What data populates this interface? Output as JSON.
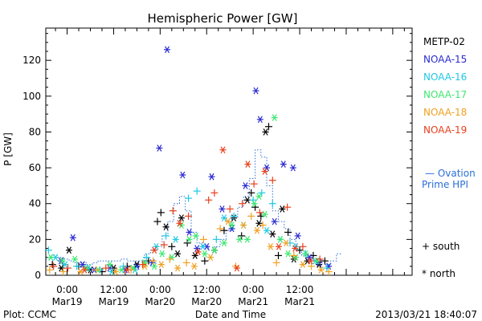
{
  "footer": {
    "plot_credit": "Plot: CCMC",
    "timestamp": "2013/03/21 18:40:07"
  },
  "legend": {
    "ovation_line1": "— Ovation",
    "ovation_line2": "Prime HPI",
    "south_label": "+ south",
    "north_label": "* north"
  },
  "chart_data": {
    "type": "scatter",
    "title": "Hemispheric Power [GW]",
    "xlabel": "Date and Time",
    "ylabel": "P [GW]",
    "x_unit": "hours since 2013-03-18 00:00 UT",
    "xlim": [
      18.5,
      113
    ],
    "ylim": [
      0,
      138
    ],
    "yticks": [
      0,
      20,
      40,
      60,
      80,
      100,
      120
    ],
    "xticks": [
      {
        "x": 24,
        "time": "0:00",
        "date": "Mar19"
      },
      {
        "x": 36,
        "time": "12:00",
        "date": "Mar19"
      },
      {
        "x": 48,
        "time": "0:00",
        "date": "Mar20"
      },
      {
        "x": 60,
        "time": "12:00",
        "date": "Mar20"
      },
      {
        "x": 72,
        "time": "0:00",
        "date": "Mar21"
      },
      {
        "x": 84,
        "time": "12:00",
        "date": "Mar21"
      }
    ],
    "grid": false,
    "legend_position": "right",
    "series": [
      {
        "name": "METP-02",
        "color": "#000000",
        "points": [
          [
            20.2,
            6,
            "+"
          ],
          [
            22.5,
            4,
            "*"
          ],
          [
            24.5,
            14,
            "*"
          ],
          [
            27,
            5,
            "+"
          ],
          [
            30,
            3,
            "*"
          ],
          [
            33,
            2,
            "+"
          ],
          [
            36,
            4,
            "*"
          ],
          [
            39.5,
            5,
            "+"
          ],
          [
            42,
            6,
            "*"
          ],
          [
            45,
            8,
            "+"
          ],
          [
            47.3,
            30,
            "+"
          ],
          [
            48.2,
            35,
            "+"
          ],
          [
            49.5,
            27,
            "*"
          ],
          [
            51,
            16,
            "+"
          ],
          [
            52.5,
            12,
            "*"
          ],
          [
            53.5,
            32,
            "*"
          ],
          [
            55,
            18,
            "+"
          ],
          [
            57,
            11,
            "*"
          ],
          [
            59.5,
            8,
            "+"
          ],
          [
            62,
            14,
            "*"
          ],
          [
            64.5,
            25,
            "+"
          ],
          [
            67,
            32,
            "*"
          ],
          [
            69,
            22,
            "+"
          ],
          [
            70.5,
            42,
            "*"
          ],
          [
            71.5,
            46,
            "+"
          ],
          [
            72.5,
            38,
            "+"
          ],
          [
            73.5,
            29,
            "*"
          ],
          [
            74,
            33,
            "+"
          ],
          [
            75.2,
            80,
            "*"
          ],
          [
            76,
            83,
            "+"
          ],
          [
            77,
            23,
            "*"
          ],
          [
            78.5,
            11,
            "+"
          ],
          [
            79.5,
            37,
            "*"
          ],
          [
            81,
            24,
            "+"
          ],
          [
            82.5,
            9,
            "*"
          ],
          [
            84,
            14,
            "+"
          ],
          [
            86,
            8,
            "*"
          ],
          [
            87.5,
            11,
            "+"
          ],
          [
            89,
            6,
            "*"
          ],
          [
            90.5,
            8,
            "+"
          ]
        ]
      },
      {
        "name": "NOAA-15",
        "color": "#2a2ad2",
        "points": [
          [
            22.4,
            8,
            "*"
          ],
          [
            25.5,
            21,
            "*"
          ],
          [
            28,
            6,
            "*"
          ],
          [
            31,
            3,
            "*"
          ],
          [
            35,
            4,
            "*"
          ],
          [
            39,
            3,
            "*"
          ],
          [
            42,
            5,
            "*"
          ],
          [
            46,
            7,
            "*"
          ],
          [
            47.8,
            71,
            "*"
          ],
          [
            49.8,
            126,
            "*"
          ],
          [
            53.8,
            56,
            "*"
          ],
          [
            55.5,
            24,
            "*"
          ],
          [
            57.5,
            15,
            "*"
          ],
          [
            60,
            16,
            "*"
          ],
          [
            61.3,
            55,
            "*"
          ],
          [
            64,
            37,
            "*"
          ],
          [
            66.5,
            26,
            "*"
          ],
          [
            70,
            50,
            "*"
          ],
          [
            72.7,
            103,
            "*"
          ],
          [
            73.8,
            87,
            "*"
          ],
          [
            75.5,
            60,
            "*"
          ],
          [
            77.5,
            30,
            "*"
          ],
          [
            79.8,
            62,
            "*"
          ],
          [
            82.3,
            60,
            "*"
          ],
          [
            83.5,
            22,
            "*"
          ],
          [
            86.5,
            10,
            "*"
          ],
          [
            89,
            7,
            "*"
          ],
          [
            91.5,
            5,
            "*"
          ]
        ]
      },
      {
        "name": "NOAA-16",
        "color": "#1fc8e6",
        "points": [
          [
            19.2,
            14,
            "+"
          ],
          [
            21,
            10,
            "*"
          ],
          [
            23.5,
            6,
            "*"
          ],
          [
            26.5,
            5,
            "+"
          ],
          [
            29.5,
            4,
            "*"
          ],
          [
            32.5,
            3,
            "+"
          ],
          [
            35.5,
            2,
            "*"
          ],
          [
            38.5,
            5,
            "+"
          ],
          [
            41.5,
            3,
            "*"
          ],
          [
            44.5,
            10,
            "+"
          ],
          [
            47,
            16,
            "*"
          ],
          [
            49.5,
            22,
            "+"
          ],
          [
            52,
            20,
            "*"
          ],
          [
            55.3,
            43,
            "+"
          ],
          [
            57.5,
            47,
            "+"
          ],
          [
            59,
            16,
            "*"
          ],
          [
            62.5,
            20,
            "+"
          ],
          [
            64.5,
            32,
            "*"
          ],
          [
            67,
            33,
            "+"
          ],
          [
            69.5,
            28,
            "*"
          ],
          [
            72,
            42,
            "+"
          ],
          [
            74.2,
            46,
            "+"
          ],
          [
            75.5,
            25,
            "*"
          ],
          [
            77,
            40,
            "+"
          ],
          [
            79,
            20,
            "*"
          ],
          [
            81.5,
            18,
            "+"
          ],
          [
            83,
            16,
            "*"
          ],
          [
            85.5,
            12,
            "+"
          ],
          [
            88,
            8,
            "*"
          ],
          [
            91,
            4,
            "+"
          ]
        ]
      },
      {
        "name": "NOAA-17",
        "color": "#3de870",
        "points": [
          [
            19.8,
            10,
            "*"
          ],
          [
            22.8,
            8,
            "*"
          ],
          [
            26,
            9,
            "*"
          ],
          [
            29,
            4,
            "*"
          ],
          [
            32,
            3,
            "*"
          ],
          [
            35,
            6,
            "*"
          ],
          [
            38,
            3,
            "*"
          ],
          [
            41,
            4,
            "*"
          ],
          [
            44,
            7,
            "*"
          ],
          [
            46.5,
            5,
            "*"
          ],
          [
            48.5,
            12,
            "*"
          ],
          [
            51,
            10,
            "*"
          ],
          [
            53.5,
            28,
            "*"
          ],
          [
            55.5,
            20,
            "*"
          ],
          [
            57.2,
            22,
            "*"
          ],
          [
            59.5,
            12,
            "*"
          ],
          [
            62,
            14,
            "*"
          ],
          [
            64.5,
            18,
            "*"
          ],
          [
            66.5,
            28,
            "*"
          ],
          [
            68.5,
            20,
            "*"
          ],
          [
            70.5,
            20,
            "*"
          ],
          [
            72.3,
            40,
            "*"
          ],
          [
            73.5,
            44,
            "*"
          ],
          [
            75,
            34,
            "*"
          ],
          [
            77.5,
            88,
            "*"
          ],
          [
            79,
            20,
            "*"
          ],
          [
            81,
            12,
            "*"
          ],
          [
            83,
            10,
            "*"
          ],
          [
            85.5,
            12,
            "*"
          ],
          [
            88.5,
            8,
            "*"
          ]
        ]
      },
      {
        "name": "NOAA-18",
        "color": "#f0a020",
        "points": [
          [
            19.5,
            3,
            "+"
          ],
          [
            23,
            2,
            "+"
          ],
          [
            27.5,
            2,
            "*"
          ],
          [
            31.5,
            3,
            "+"
          ],
          [
            36.5,
            2,
            "*"
          ],
          [
            40.5,
            3,
            "+"
          ],
          [
            44,
            5,
            "*"
          ],
          [
            46.2,
            8,
            "+"
          ],
          [
            48.3,
            6,
            "*"
          ],
          [
            50.5,
            9,
            "+"
          ],
          [
            52.5,
            4,
            "*"
          ],
          [
            54.8,
            7,
            "+"
          ],
          [
            56.8,
            5,
            "*"
          ],
          [
            59.2,
            20,
            "+"
          ],
          [
            61,
            10,
            "*"
          ],
          [
            63.5,
            26,
            "+"
          ],
          [
            65.5,
            30,
            "*"
          ],
          [
            67.5,
            5,
            "+"
          ],
          [
            69.5,
            28,
            "*"
          ],
          [
            71.5,
            33,
            "+"
          ],
          [
            73,
            25,
            "*"
          ],
          [
            74.5,
            28,
            "+"
          ],
          [
            76.5,
            16,
            "*"
          ],
          [
            78,
            7,
            "+"
          ],
          [
            80.5,
            18,
            "*"
          ],
          [
            82.5,
            11,
            "+"
          ],
          [
            84.8,
            6,
            "*"
          ],
          [
            87,
            5,
            "+"
          ],
          [
            89.5,
            3,
            "*"
          ],
          [
            91.5,
            2,
            "+"
          ]
        ]
      },
      {
        "name": "NOAA-19",
        "color": "#e8401c",
        "points": [
          [
            20.5,
            5,
            "+"
          ],
          [
            24.2,
            4,
            "+"
          ],
          [
            28.5,
            3,
            "*"
          ],
          [
            34,
            4,
            "+"
          ],
          [
            39.5,
            3,
            "*"
          ],
          [
            43.5,
            6,
            "+"
          ],
          [
            46.5,
            14,
            "*"
          ],
          [
            49,
            17,
            "+"
          ],
          [
            51.3,
            36,
            "+"
          ],
          [
            53,
            29,
            "*"
          ],
          [
            55.3,
            33,
            "+"
          ],
          [
            57.8,
            13,
            "*"
          ],
          [
            60.5,
            42,
            "+"
          ],
          [
            62,
            46,
            "+"
          ],
          [
            64.2,
            70,
            "*"
          ],
          [
            66,
            37,
            "+"
          ],
          [
            67.8,
            4,
            "*"
          ],
          [
            69.2,
            40,
            "+"
          ],
          [
            70.6,
            62,
            "*"
          ],
          [
            72.2,
            51,
            "+"
          ],
          [
            73.7,
            35,
            "+"
          ],
          [
            75,
            58,
            "*"
          ],
          [
            77,
            53,
            "+"
          ],
          [
            78.6,
            16,
            "*"
          ],
          [
            80.8,
            38,
            "+"
          ],
          [
            82.8,
            15,
            "*"
          ],
          [
            84.8,
            16,
            "+"
          ],
          [
            86.8,
            8,
            "*"
          ],
          [
            89.2,
            9,
            "+"
          ]
        ]
      }
    ],
    "ovation_hpi": {
      "color": "#2a6fd6",
      "label": "— Ovation Prime HPI",
      "steps": [
        [
          18.5,
          9
        ],
        [
          20,
          11
        ],
        [
          21.5,
          10
        ],
        [
          23,
          9
        ],
        [
          24.5,
          8
        ],
        [
          26,
          7
        ],
        [
          27.5,
          7
        ],
        [
          29,
          6
        ],
        [
          30.5,
          7
        ],
        [
          32,
          8
        ],
        [
          33.5,
          8
        ],
        [
          35,
          8
        ],
        [
          36.5,
          8
        ],
        [
          38,
          9
        ],
        [
          39.5,
          8
        ],
        [
          41,
          8
        ],
        [
          42.5,
          8
        ],
        [
          44,
          12
        ],
        [
          45.5,
          14
        ],
        [
          47,
          16
        ],
        [
          48.5,
          22
        ],
        [
          50,
          30
        ],
        [
          51.5,
          40
        ],
        [
          53,
          44
        ],
        [
          54.5,
          36
        ],
        [
          56,
          24
        ],
        [
          57.5,
          18
        ],
        [
          59,
          16
        ],
        [
          60.5,
          14
        ],
        [
          62,
          16
        ],
        [
          63.5,
          20
        ],
        [
          65,
          25
        ],
        [
          66.5,
          32
        ],
        [
          68,
          38
        ],
        [
          69.5,
          44
        ],
        [
          71,
          54
        ],
        [
          72.5,
          70
        ],
        [
          74,
          66
        ],
        [
          75.5,
          50
        ],
        [
          77,
          36
        ],
        [
          78.5,
          30
        ],
        [
          80,
          26
        ],
        [
          81.5,
          20
        ],
        [
          83,
          14
        ],
        [
          84.5,
          11
        ],
        [
          86,
          9
        ],
        [
          87.5,
          8
        ],
        [
          89,
          7
        ],
        [
          90.5,
          6
        ],
        [
          92,
          8
        ],
        [
          93.5,
          12
        ]
      ]
    }
  }
}
